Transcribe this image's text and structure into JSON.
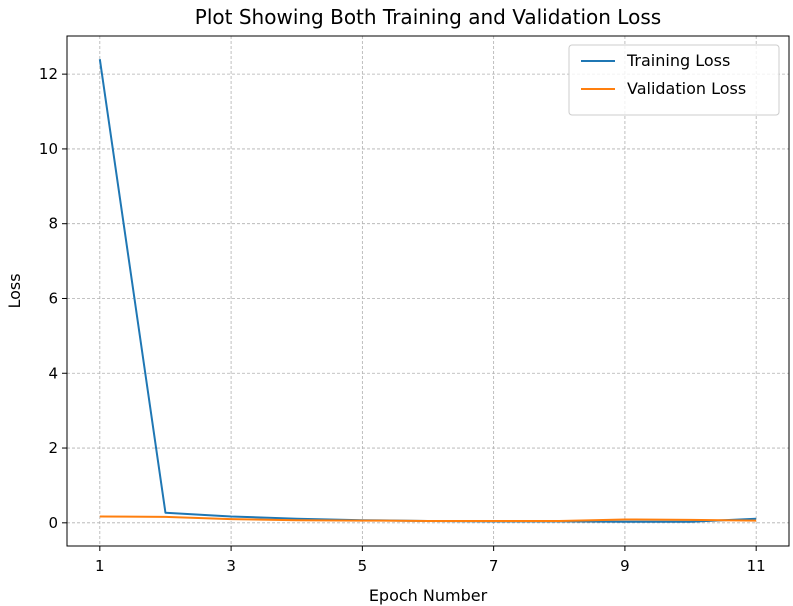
{
  "chart_data": {
    "type": "line",
    "title": "Plot Showing Both Training and Validation Loss",
    "xlabel": "Epoch Number",
    "ylabel": "Loss",
    "x": [
      1,
      2,
      3,
      4,
      5,
      6,
      7,
      8,
      9,
      10,
      11
    ],
    "xticks": [
      1,
      3,
      5,
      7,
      9,
      11
    ],
    "yticks": [
      0,
      2,
      4,
      6,
      8,
      10,
      12
    ],
    "xlim": [
      0.5,
      11.5
    ],
    "ylim": [
      -0.62,
      13.02
    ],
    "grid": true,
    "legend_position": "top-right",
    "series": [
      {
        "name": "Training Loss",
        "color": "#1f77b4",
        "values": [
          12.4,
          0.27,
          0.17,
          0.11,
          0.07,
          0.05,
          0.04,
          0.04,
          0.03,
          0.03,
          0.11
        ]
      },
      {
        "name": "Validation Loss",
        "color": "#ff7f0e",
        "values": [
          0.17,
          0.16,
          0.1,
          0.07,
          0.06,
          0.05,
          0.05,
          0.05,
          0.09,
          0.08,
          0.06
        ]
      }
    ]
  }
}
